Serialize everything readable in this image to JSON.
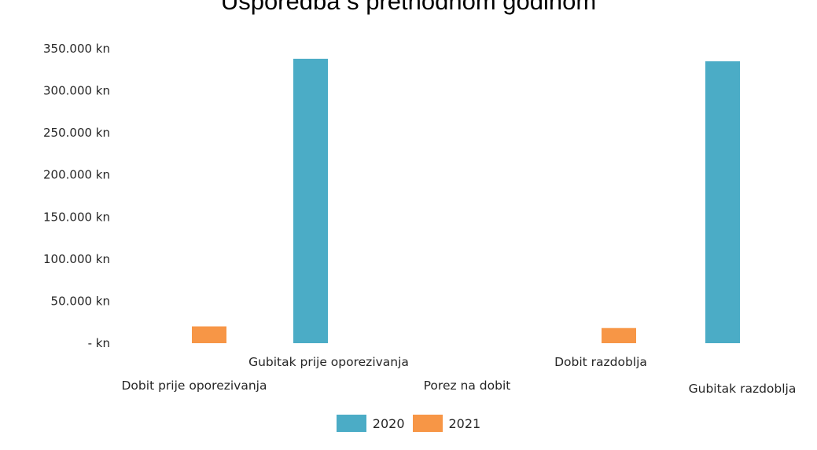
{
  "colors": {
    "series_2020": "#4BACC6",
    "series_2021": "#F79646",
    "text": "#262626"
  },
  "chart_data": {
    "type": "bar",
    "title": "Usporedba s prethodnom godinom",
    "xlabel": "",
    "ylabel": "",
    "categories": [
      "Dobit prije oporezivanja",
      "Gubitak prije oporezivanja",
      "Porez na dobit",
      "Dobit razdoblja",
      "Gubitak razdoblja"
    ],
    "series": [
      {
        "name": "2020",
        "values": [
          0,
          338000,
          0,
          0,
          335000
        ]
      },
      {
        "name": "2021",
        "values": [
          20000,
          0,
          0,
          18000,
          0
        ]
      }
    ],
    "ylim": [
      0,
      350000
    ],
    "yticks": [
      {
        "value": 0,
        "label": "- kn"
      },
      {
        "value": 50000,
        "label": "50.000 kn"
      },
      {
        "value": 100000,
        "label": "100.000 kn"
      },
      {
        "value": 150000,
        "label": "150.000 kn"
      },
      {
        "value": 200000,
        "label": "200.000 kn"
      },
      {
        "value": 250000,
        "label": "250.000 kn"
      },
      {
        "value": 300000,
        "label": "300.000 kn"
      },
      {
        "value": 350000,
        "label": "350.000 kn"
      }
    ],
    "grid": false,
    "legend_position": "bottom"
  }
}
